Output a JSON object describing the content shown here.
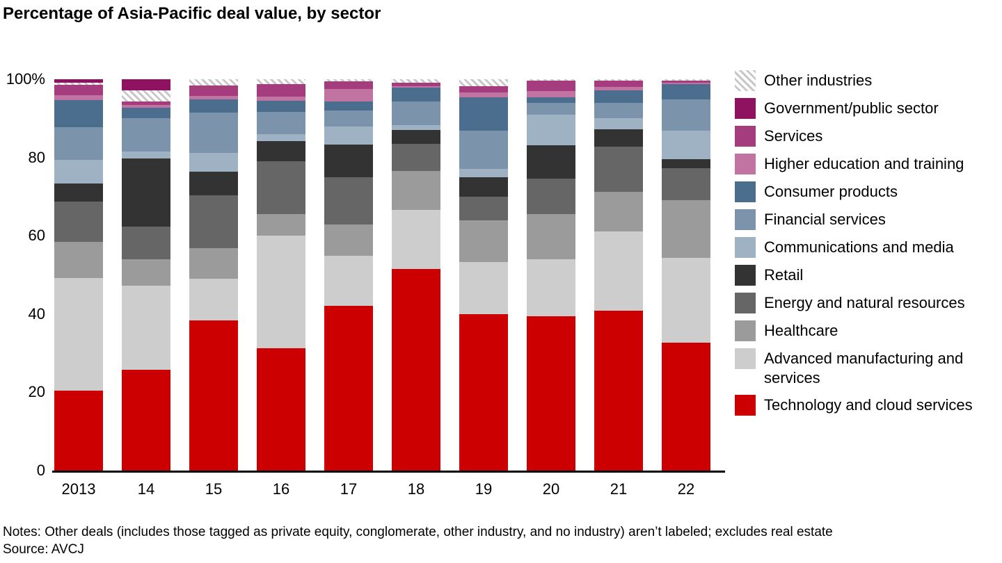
{
  "title": "Percentage of Asia-Pacific deal value, by sector",
  "notes": "Notes: Other deals (includes those tagged as private equity, conglomerate, other industry, and no industry) aren’t labeled; excludes real estate",
  "source": "Source: AVCJ",
  "colors": {
    "technology": "#cc0000",
    "advanced_manufacturing": "#cdcdcd",
    "healthcare": "#9b9b9b",
    "energy": "#666666",
    "retail": "#333333",
    "communications": "#9fb2c4",
    "financial": "#7b94ab",
    "consumer": "#4c6e8e",
    "higher_education": "#c173a2",
    "services": "#a53c7e",
    "government": "#8e1260",
    "other_hatch": "hatch"
  },
  "legend": [
    {
      "label": "Other industries",
      "color": "hatch"
    },
    {
      "label": "Government/public sector",
      "color": "#8e1260"
    },
    {
      "label": "Services",
      "color": "#a53c7e"
    },
    {
      "label": "Higher education and training",
      "color": "#c173a2"
    },
    {
      "label": "Consumer products",
      "color": "#4c6e8e"
    },
    {
      "label": "Financial services",
      "color": "#7b94ab"
    },
    {
      "label": "Communications and media",
      "color": "#9fb2c4"
    },
    {
      "label": "Retail",
      "color": "#333333"
    },
    {
      "label": "Energy and natural resources",
      "color": "#666666"
    },
    {
      "label": "Healthcare",
      "color": "#9b9b9b"
    },
    {
      "label": "Advanced manufacturing and services",
      "color": "#cdcdcd"
    },
    {
      "label": "Technology and cloud services",
      "color": "#cc0000"
    }
  ],
  "chart_data": {
    "type": "bar",
    "subtype": "stacked-100-percent",
    "title": "Percentage of Asia-Pacific deal value, by sector",
    "xlabel": "",
    "ylabel": "",
    "unit": "%",
    "ylim": [
      0,
      100
    ],
    "grid": false,
    "legend_position": "right",
    "categories": [
      "2013",
      "14",
      "15",
      "16",
      "17",
      "18",
      "19",
      "20",
      "21",
      "22"
    ],
    "y_ticks": [
      {
        "label": "100%",
        "value": 100
      },
      {
        "label": "80",
        "value": 80
      },
      {
        "label": "60",
        "value": 60
      },
      {
        "label": "40",
        "value": 40
      },
      {
        "label": "20",
        "value": 20
      },
      {
        "label": "0",
        "value": 0
      }
    ],
    "series_order_note": "listed bottom-to-top as stacked in each bar",
    "series": [
      {
        "name": "Technology and cloud services",
        "color": "#cc0000",
        "values": [
          20.5,
          25.8,
          38.4,
          31.3,
          42.0,
          51.5,
          40.0,
          39.5,
          40.8,
          32.7
        ]
      },
      {
        "name": "Advanced manufacturing and services",
        "color": "#cdcdcd",
        "values": [
          28.7,
          21.5,
          10.6,
          28.7,
          12.9,
          15.1,
          13.3,
          14.5,
          20.3,
          21.7
        ]
      },
      {
        "name": "Healthcare",
        "color": "#9b9b9b",
        "values": [
          9.2,
          6.7,
          7.8,
          5.5,
          8.0,
          10.0,
          10.6,
          11.5,
          10.1,
          14.7
        ]
      },
      {
        "name": "Energy and natural resources",
        "color": "#666666",
        "values": [
          10.3,
          8.3,
          13.5,
          13.5,
          12.1,
          6.9,
          6.1,
          9.1,
          11.6,
          8.2
        ]
      },
      {
        "name": "Retail",
        "color": "#333333",
        "values": [
          4.7,
          17.4,
          6.1,
          5.2,
          8.3,
          3.5,
          5.0,
          8.5,
          4.4,
          2.3
        ]
      },
      {
        "name": "Communications and media",
        "color": "#9fb2c4",
        "values": [
          6.0,
          1.8,
          4.8,
          1.8,
          4.6,
          1.3,
          2.1,
          7.9,
          2.9,
          7.3
        ]
      },
      {
        "name": "Financial services",
        "color": "#7b94ab",
        "values": [
          8.3,
          8.6,
          10.3,
          5.6,
          4.1,
          6.0,
          9.8,
          2.9,
          3.9,
          7.9
        ]
      },
      {
        "name": "Consumer products",
        "color": "#4c6e8e",
        "values": [
          6.9,
          2.7,
          3.3,
          2.9,
          2.3,
          3.5,
          8.5,
          1.4,
          3.2,
          3.9
        ]
      },
      {
        "name": "Higher education and training",
        "color": "#c173a2",
        "values": [
          1.4,
          0.7,
          0.9,
          1.0,
          3.2,
          0.4,
          1.2,
          1.6,
          0.8,
          0.4
        ]
      },
      {
        "name": "Services",
        "color": "#a53c7e",
        "values": [
          2.5,
          0.9,
          2.7,
          3.3,
          2.0,
          0.9,
          1.6,
          2.8,
          1.6,
          0.6
        ]
      },
      {
        "name": "Other industries",
        "color": "hatch",
        "values": [
          0.6,
          2.8,
          1.6,
          1.2,
          0.5,
          0.9,
          1.8,
          0.3,
          0.4,
          0.3
        ]
      },
      {
        "name": "Government/public sector",
        "color": "#8e1260",
        "values": [
          0.9,
          2.8,
          0,
          0,
          0,
          0,
          0,
          0,
          0,
          0
        ]
      }
    ]
  }
}
